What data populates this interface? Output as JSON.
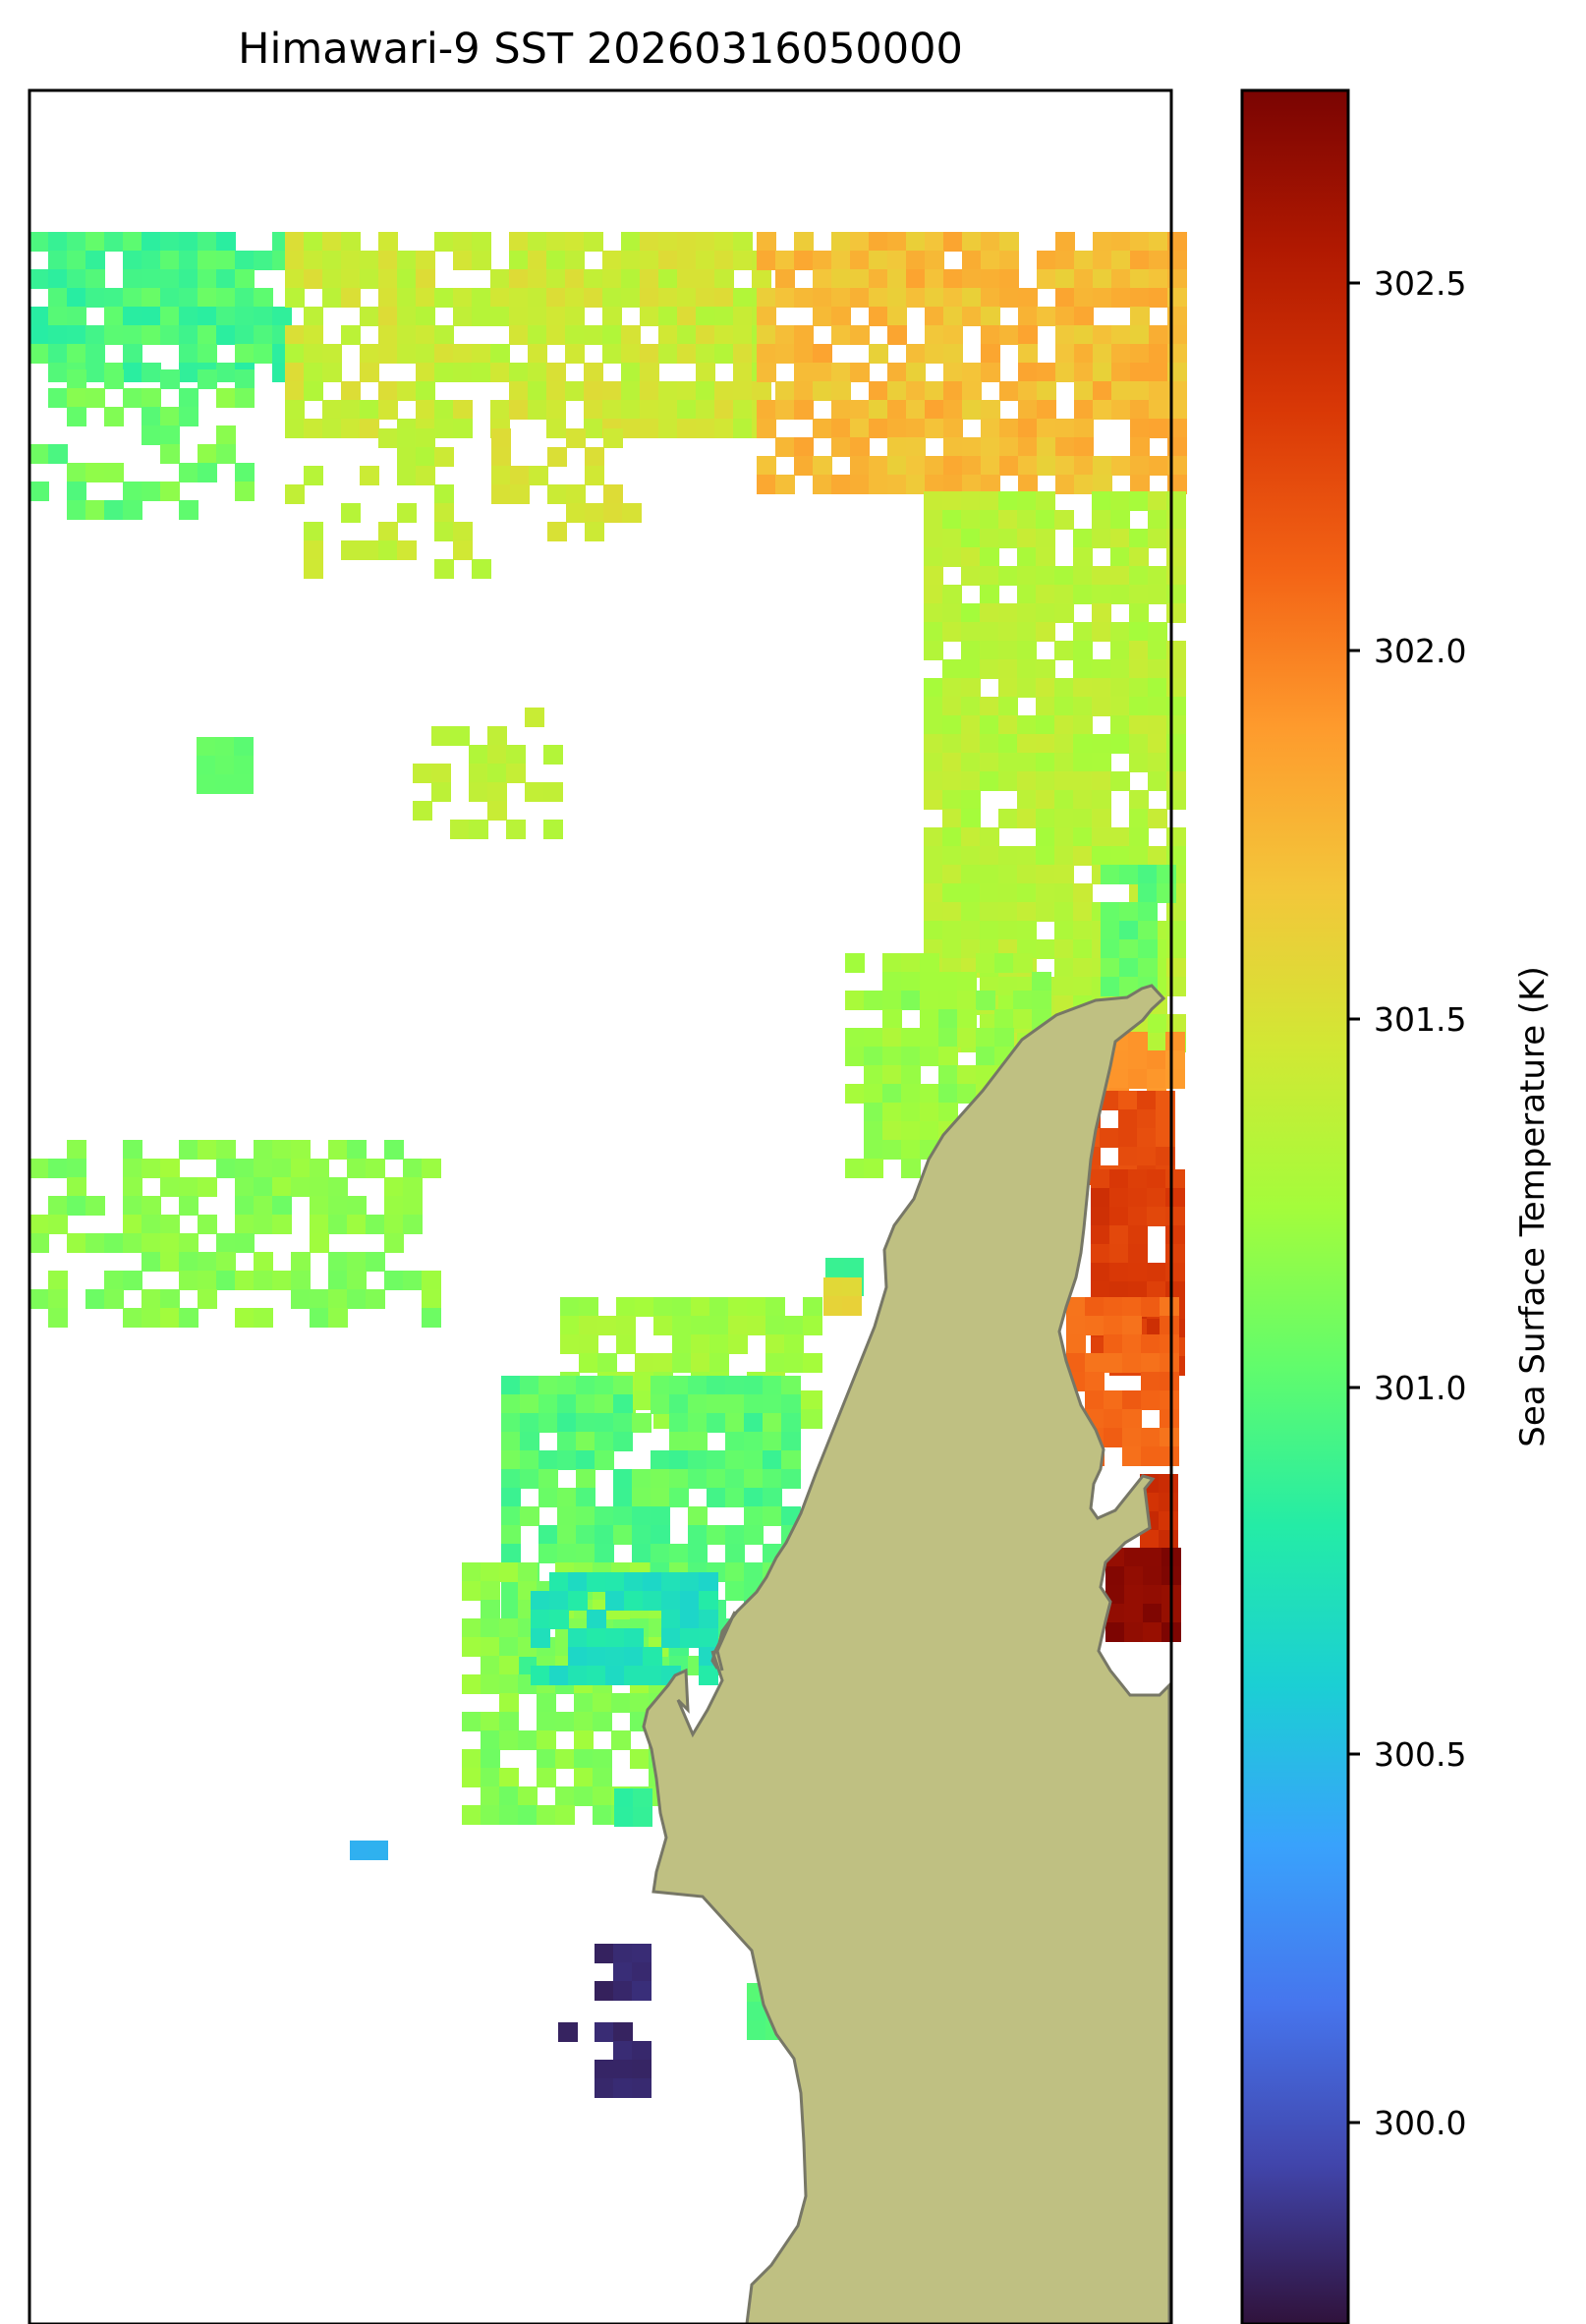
{
  "title": "Himawari-9 SST 20260316050000",
  "colorbar": {
    "label": "Sea Surface Temperature (K)",
    "ticks": [
      "300.0",
      "300.5",
      "301.0",
      "301.5",
      "302.0",
      "302.5"
    ],
    "colormap": [
      "#30123b",
      "#4145ab",
      "#4675ed",
      "#39a2fc",
      "#1bcfd4",
      "#24eca6",
      "#61fc6c",
      "#a4fc3b",
      "#d1e834",
      "#f3c63a",
      "#fe9b2d",
      "#f36315",
      "#d93806",
      "#b11901",
      "#7a0402"
    ]
  },
  "land_color": "#bfc082",
  "coast_color": "#777766"
}
